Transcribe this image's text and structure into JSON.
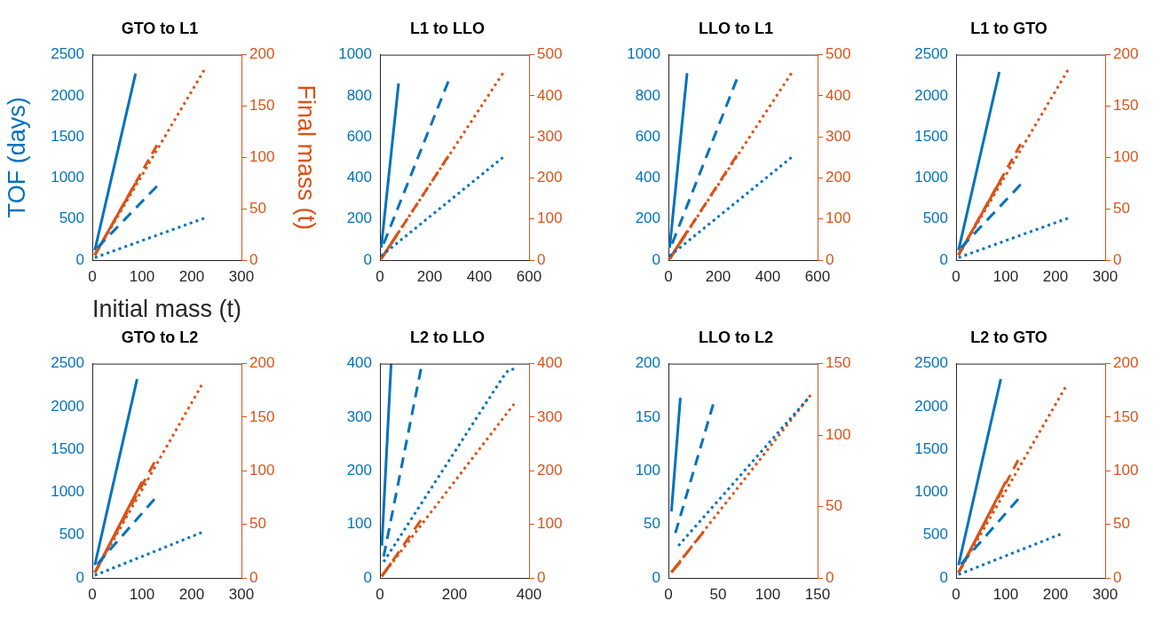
{
  "chart_data": [
    {
      "type": "line",
      "title": "GTO to L1",
      "xlabel": "Initial mass (t)",
      "ylabel": "TOF (days)",
      "y2label": "Final mass (t)",
      "xlim": [
        0,
        300
      ],
      "xticks": [
        0,
        100,
        200,
        300
      ],
      "ylim": [
        0,
        2500
      ],
      "yticks": [
        0,
        500,
        1000,
        1500,
        2000,
        2500
      ],
      "y2lim": [
        0,
        200
      ],
      "y2ticks": [
        0,
        50,
        100,
        150,
        200
      ],
      "series": [
        {
          "color": "#0072bd",
          "line_style": "solid",
          "x": [
            5,
            87
          ],
          "values": [
            120,
            2270
          ]
        },
        {
          "color": "#0072bd",
          "line_style": "dashed",
          "x": [
            10,
            130
          ],
          "values": [
            150,
            900
          ]
        },
        {
          "color": "#0072bd",
          "line_style": "dotted",
          "x": [
            5,
            225
          ],
          "values": [
            30,
            510
          ]
        },
        {
          "color": "#d95319",
          "axis": "y2",
          "line_style": "solid",
          "x": [
            5,
            87
          ],
          "values": [
            5,
            75
          ]
        },
        {
          "color": "#d95319",
          "axis": "y2",
          "line_style": "dashed",
          "x": [
            5,
            130
          ],
          "values": [
            5,
            112
          ]
        },
        {
          "color": "#d95319",
          "axis": "y2",
          "line_style": "dotted",
          "x": [
            5,
            225
          ],
          "values": [
            5,
            185
          ]
        }
      ]
    },
    {
      "type": "line",
      "title": "L1 to LLO",
      "xlim": [
        0,
        600
      ],
      "xticks": [
        0,
        200,
        400,
        600
      ],
      "ylim": [
        0,
        1000
      ],
      "yticks": [
        0,
        200,
        400,
        600,
        800,
        1000
      ],
      "y2lim": [
        0,
        500
      ],
      "y2ticks": [
        0,
        100,
        200,
        300,
        400,
        500
      ],
      "series": [
        {
          "color": "#0072bd",
          "line_style": "solid",
          "x": [
            5,
            75
          ],
          "values": [
            60,
            860
          ]
        },
        {
          "color": "#0072bd",
          "line_style": "dashed",
          "x": [
            15,
            275
          ],
          "values": [
            80,
            870
          ]
        },
        {
          "color": "#0072bd",
          "line_style": "dotted",
          "x": [
            5,
            495
          ],
          "values": [
            20,
            500
          ]
        },
        {
          "color": "#d95319",
          "axis": "y2",
          "line_style": "solid",
          "x": [
            5,
            75
          ],
          "values": [
            3,
            68
          ]
        },
        {
          "color": "#d95319",
          "axis": "y2",
          "line_style": "dashed",
          "x": [
            5,
            275
          ],
          "values": [
            3,
            253
          ]
        },
        {
          "color": "#d95319",
          "axis": "y2",
          "line_style": "dotted",
          "x": [
            5,
            495
          ],
          "values": [
            3,
            455
          ]
        }
      ]
    },
    {
      "type": "line",
      "title": "LLO to L1",
      "xlim": [
        0,
        600
      ],
      "xticks": [
        0,
        200,
        400,
        600
      ],
      "ylim": [
        0,
        1000
      ],
      "yticks": [
        0,
        200,
        400,
        600,
        800,
        1000
      ],
      "y2lim": [
        0,
        500
      ],
      "y2ticks": [
        0,
        100,
        200,
        300,
        400,
        500
      ],
      "series": [
        {
          "color": "#0072bd",
          "line_style": "solid",
          "x": [
            5,
            75
          ],
          "values": [
            60,
            910
          ]
        },
        {
          "color": "#0072bd",
          "line_style": "dashed",
          "x": [
            15,
            275
          ],
          "values": [
            80,
            880
          ]
        },
        {
          "color": "#0072bd",
          "line_style": "dotted",
          "x": [
            5,
            495
          ],
          "values": [
            20,
            500
          ]
        },
        {
          "color": "#d95319",
          "axis": "y2",
          "line_style": "solid",
          "x": [
            5,
            75
          ],
          "values": [
            3,
            70
          ]
        },
        {
          "color": "#d95319",
          "axis": "y2",
          "line_style": "dashed",
          "x": [
            5,
            275
          ],
          "values": [
            3,
            255
          ]
        },
        {
          "color": "#d95319",
          "axis": "y2",
          "line_style": "dotted",
          "x": [
            5,
            495
          ],
          "values": [
            3,
            455
          ]
        }
      ]
    },
    {
      "type": "line",
      "title": "L1 to GTO",
      "xlim": [
        0,
        300
      ],
      "xticks": [
        0,
        100,
        200,
        300
      ],
      "ylim": [
        0,
        2500
      ],
      "yticks": [
        0,
        500,
        1000,
        1500,
        2000,
        2500
      ],
      "y2lim": [
        0,
        200
      ],
      "y2ticks": [
        0,
        50,
        100,
        150,
        200
      ],
      "series": [
        {
          "color": "#0072bd",
          "line_style": "solid",
          "x": [
            5,
            87
          ],
          "values": [
            120,
            2290
          ]
        },
        {
          "color": "#0072bd",
          "line_style": "dashed",
          "x": [
            10,
            130
          ],
          "values": [
            150,
            920
          ]
        },
        {
          "color": "#0072bd",
          "line_style": "dotted",
          "x": [
            5,
            225
          ],
          "values": [
            30,
            510
          ]
        },
        {
          "color": "#d95319",
          "axis": "y2",
          "line_style": "solid",
          "x": [
            5,
            90
          ],
          "values": [
            5,
            78
          ]
        },
        {
          "color": "#d95319",
          "axis": "y2",
          "line_style": "dashed",
          "x": [
            5,
            130
          ],
          "values": [
            5,
            113
          ]
        },
        {
          "color": "#d95319",
          "axis": "y2",
          "line_style": "dotted",
          "x": [
            5,
            225
          ],
          "values": [
            5,
            185
          ]
        }
      ]
    },
    {
      "type": "line",
      "title": "GTO to L2",
      "xlim": [
        0,
        300
      ],
      "xticks": [
        0,
        100,
        200,
        300
      ],
      "ylim": [
        0,
        2500
      ],
      "yticks": [
        0,
        500,
        1000,
        1500,
        2000,
        2500
      ],
      "y2lim": [
        0,
        200
      ],
      "y2ticks": [
        0,
        50,
        100,
        150,
        200
      ],
      "series": [
        {
          "color": "#0072bd",
          "line_style": "solid",
          "x": [
            5,
            90
          ],
          "values": [
            150,
            2320
          ]
        },
        {
          "color": "#0072bd",
          "line_style": "dashed",
          "x": [
            10,
            125
          ],
          "values": [
            160,
            920
          ]
        },
        {
          "color": "#0072bd",
          "line_style": "dotted",
          "x": [
            5,
            220
          ],
          "values": [
            30,
            530
          ]
        },
        {
          "color": "#d95319",
          "axis": "y2",
          "line_style": "solid",
          "x": [
            5,
            100
          ],
          "values": [
            5,
            90
          ]
        },
        {
          "color": "#d95319",
          "axis": "y2",
          "line_style": "dashed",
          "x": [
            5,
            125
          ],
          "values": [
            5,
            108
          ]
        },
        {
          "color": "#d95319",
          "axis": "y2",
          "line_style": "dotted",
          "x": [
            5,
            220
          ],
          "values": [
            5,
            180
          ]
        }
      ]
    },
    {
      "type": "line",
      "title": "L2 to LLO",
      "xlim": [
        0,
        400
      ],
      "xticks": [
        0,
        200,
        400
      ],
      "ylim": [
        0,
        400
      ],
      "yticks": [
        0,
        100,
        200,
        300,
        400
      ],
      "y2lim": [
        0,
        400
      ],
      "y2ticks": [
        0,
        100,
        200,
        300,
        400
      ],
      "series": [
        {
          "color": "#0072bd",
          "line_style": "solid",
          "x": [
            5,
            30
          ],
          "values": [
            60,
            400
          ]
        },
        {
          "color": "#0072bd",
          "line_style": "dashed",
          "x": [
            10,
            110
          ],
          "values": [
            40,
            390
          ]
        },
        {
          "color": "#0072bd",
          "line_style": "dotted",
          "x": [
            10,
            330,
            345,
            360
          ],
          "values": [
            30,
            375,
            388,
            390
          ]
        },
        {
          "color": "#d95319",
          "axis": "y2",
          "line_style": "solid",
          "x": [
            5,
            30
          ],
          "values": [
            3,
            28
          ]
        },
        {
          "color": "#d95319",
          "axis": "y2",
          "line_style": "dashed",
          "x": [
            5,
            110
          ],
          "values": [
            3,
            108
          ]
        },
        {
          "color": "#d95319",
          "axis": "y2",
          "line_style": "dotted",
          "x": [
            5,
            360
          ],
          "values": [
            3,
            325
          ]
        }
      ]
    },
    {
      "type": "line",
      "title": "LLO to L2",
      "xlim": [
        0,
        150
      ],
      "xticks": [
        0,
        50,
        100,
        150
      ],
      "ylim": [
        0,
        200
      ],
      "yticks": [
        0,
        50,
        100,
        150,
        200
      ],
      "y2lim": [
        0,
        150
      ],
      "y2ticks": [
        0,
        50,
        100,
        150
      ],
      "series": [
        {
          "color": "#0072bd",
          "line_style": "solid",
          "x": [
            3,
            12
          ],
          "values": [
            62,
            168
          ]
        },
        {
          "color": "#0072bd",
          "line_style": "dashed",
          "x": [
            7,
            45
          ],
          "values": [
            42,
            162
          ]
        },
        {
          "color": "#0072bd",
          "line_style": "dotted",
          "x": [
            10,
            140
          ],
          "values": [
            30,
            167
          ]
        },
        {
          "color": "#d95319",
          "axis": "y2",
          "line_style": "solid",
          "x": [
            3,
            12
          ],
          "values": [
            4,
            11
          ]
        },
        {
          "color": "#d95319",
          "axis": "y2",
          "line_style": "dashed",
          "x": [
            3,
            35
          ],
          "values": [
            4,
            32
          ]
        },
        {
          "color": "#d95319",
          "axis": "y2",
          "line_style": "dotted",
          "x": [
            3,
            143
          ],
          "values": [
            4,
            128
          ]
        }
      ]
    },
    {
      "type": "line",
      "title": "L2 to GTO",
      "xlim": [
        0,
        300
      ],
      "xticks": [
        0,
        100,
        200,
        300
      ],
      "ylim": [
        0,
        2500
      ],
      "yticks": [
        0,
        500,
        1000,
        1500,
        2000,
        2500
      ],
      "y2lim": [
        0,
        200
      ],
      "y2ticks": [
        0,
        50,
        100,
        150,
        200
      ],
      "series": [
        {
          "color": "#0072bd",
          "line_style": "solid",
          "x": [
            5,
            90
          ],
          "values": [
            150,
            2320
          ]
        },
        {
          "color": "#0072bd",
          "line_style": "dashed",
          "x": [
            10,
            125
          ],
          "values": [
            160,
            920
          ]
        },
        {
          "color": "#0072bd",
          "line_style": "dotted",
          "x": [
            5,
            210
          ],
          "values": [
            40,
            510
          ]
        },
        {
          "color": "#d95319",
          "axis": "y2",
          "line_style": "solid",
          "x": [
            5,
            100
          ],
          "values": [
            5,
            90
          ]
        },
        {
          "color": "#d95319",
          "axis": "y2",
          "line_style": "dashed",
          "x": [
            5,
            125
          ],
          "values": [
            5,
            110
          ]
        },
        {
          "color": "#d95319",
          "axis": "y2",
          "line_style": "dotted",
          "x": [
            5,
            220
          ],
          "values": [
            5,
            178
          ]
        }
      ]
    }
  ]
}
